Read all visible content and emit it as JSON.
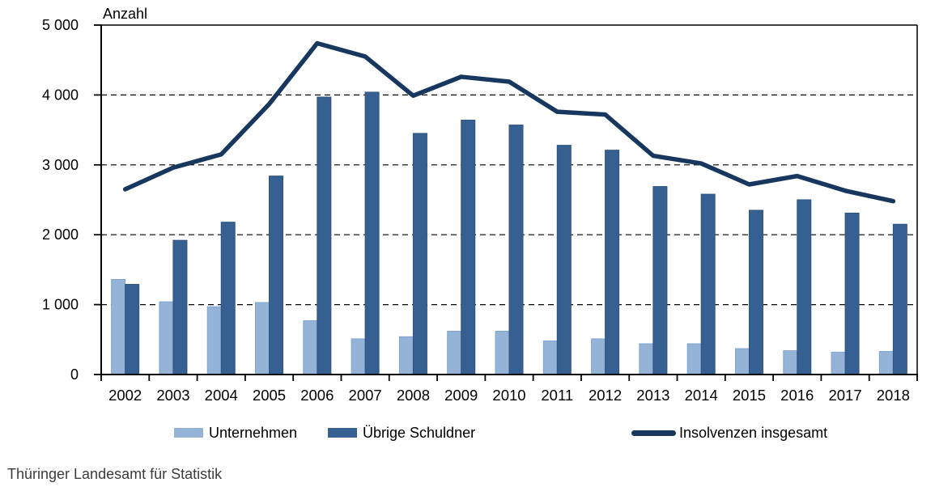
{
  "y_axis_title": "Anzahl",
  "source": "Thüringer Landesamt für Statistik",
  "colors": {
    "bar_light": "#95B3D7",
    "bar_light_border": "#7EA4D3",
    "bar_dark": "#376092",
    "bar_dark_border": "#2F5480",
    "line": "#17375E",
    "grid": "#000000",
    "axis": "#000000",
    "footer_text": "#3C3C3C"
  },
  "chart_data": {
    "type": "combo_bar_line",
    "title": "",
    "ylabel": "Anzahl",
    "xlabel": "",
    "ylim": [
      0,
      5000
    ],
    "ytick_step": 1000,
    "ytick_labels": [
      "0",
      "1 000",
      "2 000",
      "3 000",
      "4 000",
      "5 000"
    ],
    "grid": "horizontal-dashed",
    "legend_position": "bottom",
    "categories": [
      "2002",
      "2003",
      "2004",
      "2005",
      "2006",
      "2007",
      "2008",
      "2009",
      "2010",
      "2011",
      "2012",
      "2013",
      "2014",
      "2015",
      "2016",
      "2017",
      "2018"
    ],
    "series": [
      {
        "name": "Unternehmen",
        "type": "bar",
        "color": "#95B3D7",
        "values": [
          1360,
          1040,
          970,
          1030,
          770,
          510,
          540,
          620,
          620,
          480,
          510,
          440,
          440,
          370,
          340,
          320,
          330
        ]
      },
      {
        "name": "Übrige Schuldner",
        "type": "bar",
        "color": "#376092",
        "values": [
          1290,
          1920,
          2180,
          2840,
          3970,
          4040,
          3450,
          3640,
          3570,
          3280,
          3210,
          2690,
          2580,
          2350,
          2500,
          2310,
          2150
        ]
      },
      {
        "name": "Insolvenzen insgesamt",
        "type": "line",
        "color": "#17375E",
        "values": [
          2650,
          2960,
          3150,
          3870,
          4740,
          4550,
          3990,
          4260,
          4190,
          3760,
          3720,
          3130,
          3020,
          2720,
          2840,
          2630,
          2480
        ]
      }
    ]
  }
}
